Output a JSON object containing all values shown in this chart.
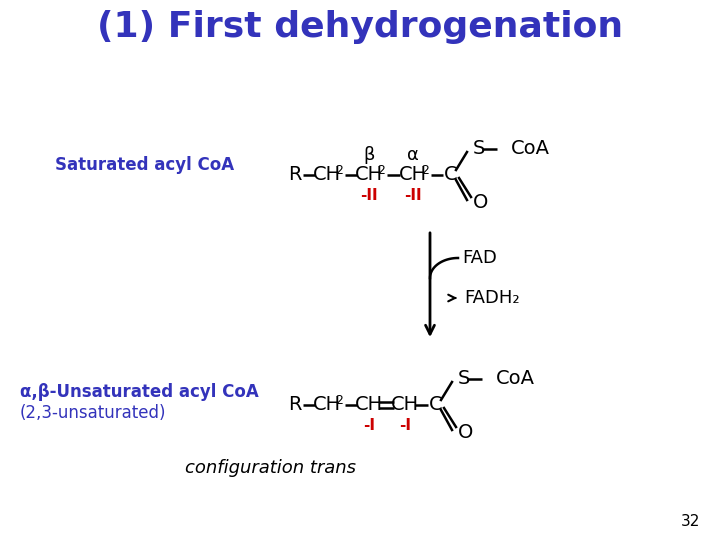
{
  "title": "(1) First dehydrogenation",
  "title_color": "#3333BB",
  "title_fontsize": 26,
  "bg_color": "#FFFFFF",
  "label_saturated": "Saturated acyl CoA",
  "label_unsaturated": "α,β-Unsaturated acyl CoA",
  "label_23unsat": "(2,3-unsaturated)",
  "label_config": "configuration trans",
  "label_color_blue": "#3333BB",
  "label_color_red": "#CC0000",
  "label_color_black": "#000000",
  "page_number": "32",
  "fad_label": "FAD",
  "fadh2_label": "FADH₂"
}
